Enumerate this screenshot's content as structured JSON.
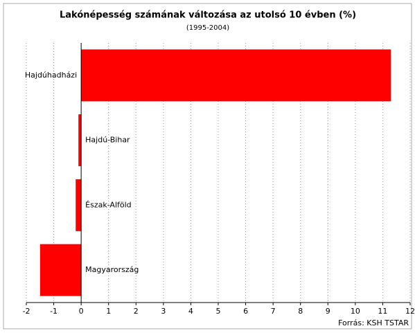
{
  "chart_data": {
    "type": "hbar",
    "title": "Lakónépesség számának változása az utolsó 10 évben (%)",
    "subtitle": "(1995-2004)",
    "source": "Forrás: KSH TSTAR",
    "categories": [
      "Hajdúhadházi",
      "Hajdú-Bihar",
      "Észak-Alföld",
      "Magyarország"
    ],
    "values": [
      11.3,
      -0.1,
      -0.2,
      -1.5
    ],
    "color": "#ff0000",
    "xlim": [
      -2,
      12
    ],
    "xticks": [
      -2,
      -1,
      0,
      1,
      2,
      3,
      4,
      5,
      6,
      7,
      8,
      9,
      10,
      11,
      12
    ],
    "grid": true
  }
}
